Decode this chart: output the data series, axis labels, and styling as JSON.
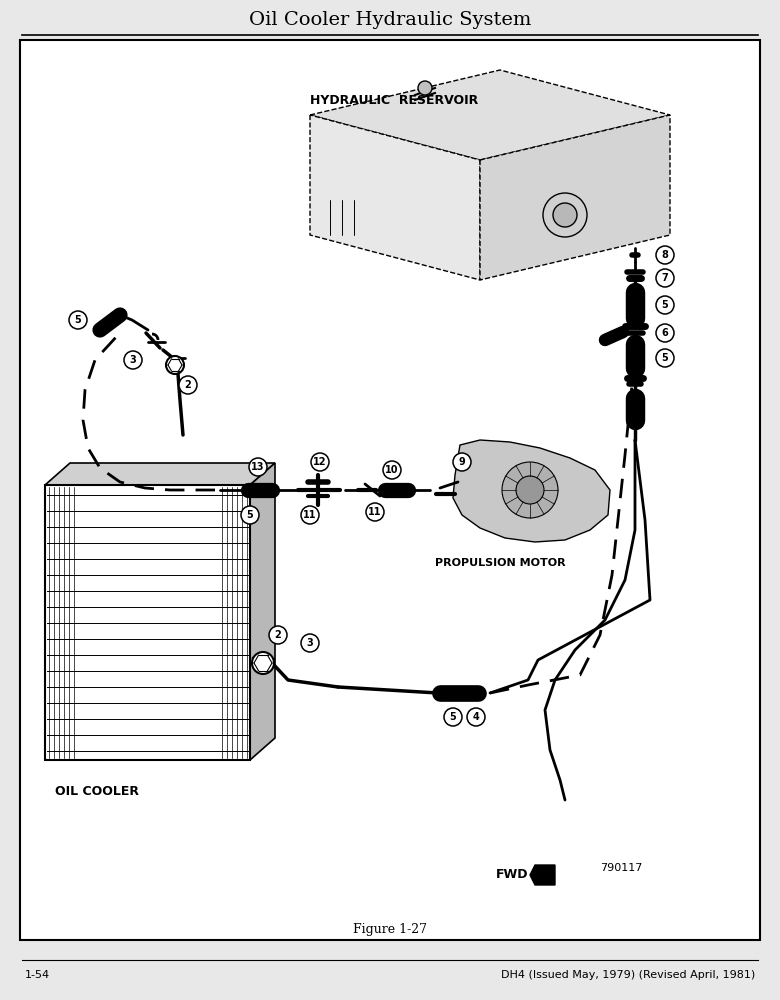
{
  "title": "Oil Cooler Hydraulic System",
  "figure_label": "Figure 1-27",
  "page_left": "1-54",
  "page_right": "DH4 (Issued May, 1979) (Revised April, 1981)",
  "part_number": "790117",
  "labels": {
    "hydraulic_reservoir": "HYDRAULIC  RESERVOIR",
    "propulsion_motor": "PROPULSION MOTOR",
    "oil_cooler": "OIL COOLER",
    "fwd": "FWD"
  },
  "bg_color": "#e8e8e8",
  "diagram_bg": "#ffffff",
  "border_color": "#000000",
  "title_fontsize": 14,
  "label_fontsize": 8.5,
  "pagenum_fontsize": 8,
  "circ_label_fontsize": 7
}
